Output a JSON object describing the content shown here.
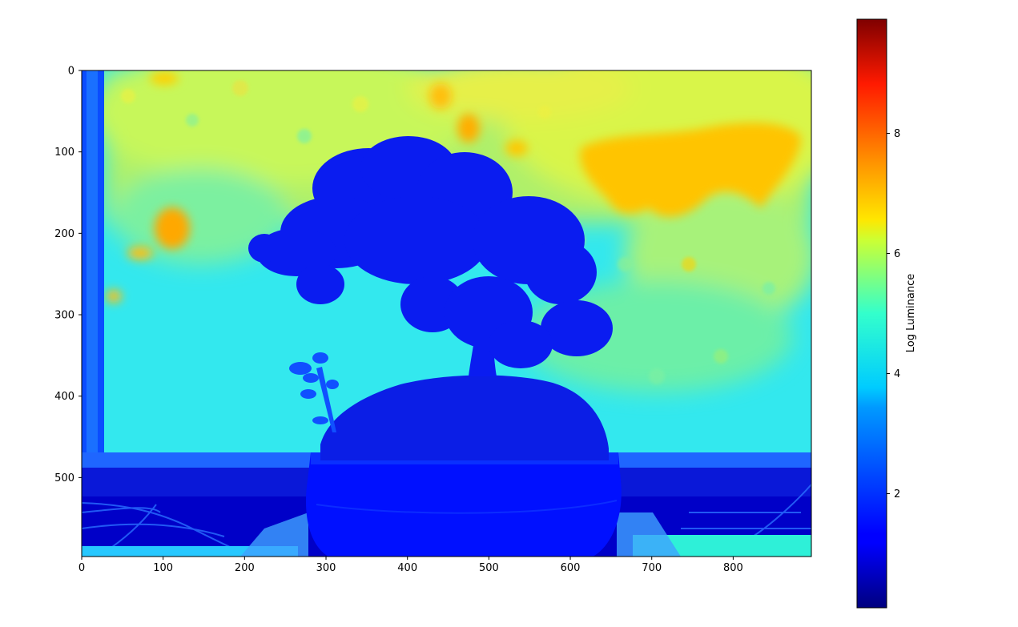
{
  "chart_data": {
    "type": "heatmap",
    "title": "",
    "xlabel": "",
    "ylabel": "",
    "x_ticks": [
      0,
      100,
      200,
      300,
      400,
      500,
      600,
      700,
      800
    ],
    "y_ticks": [
      0,
      100,
      200,
      300,
      400,
      500
    ],
    "xlim": [
      0,
      896
    ],
    "ylim": [
      597,
      0
    ],
    "colormap": "jet",
    "colorbar": {
      "label": "Log Luminance",
      "ticks": [
        2,
        4,
        6,
        8
      ],
      "range": [
        0.1,
        9.9
      ]
    },
    "regions": [
      {
        "name": "window-background",
        "value": 4.0
      },
      {
        "name": "bright-sky-upper",
        "value": 5.6
      },
      {
        "name": "bright-patch-upper-right",
        "value": 6.8
      },
      {
        "name": "bright-patch-left",
        "value": 7.2
      },
      {
        "name": "window-frame",
        "value": 1.4
      },
      {
        "name": "bonsai-tree-and-pot",
        "value": 1.0
      },
      {
        "name": "sill-bottom",
        "value": 0.6
      },
      {
        "name": "table-cloth-bottom-right",
        "value": 3.8
      }
    ]
  }
}
